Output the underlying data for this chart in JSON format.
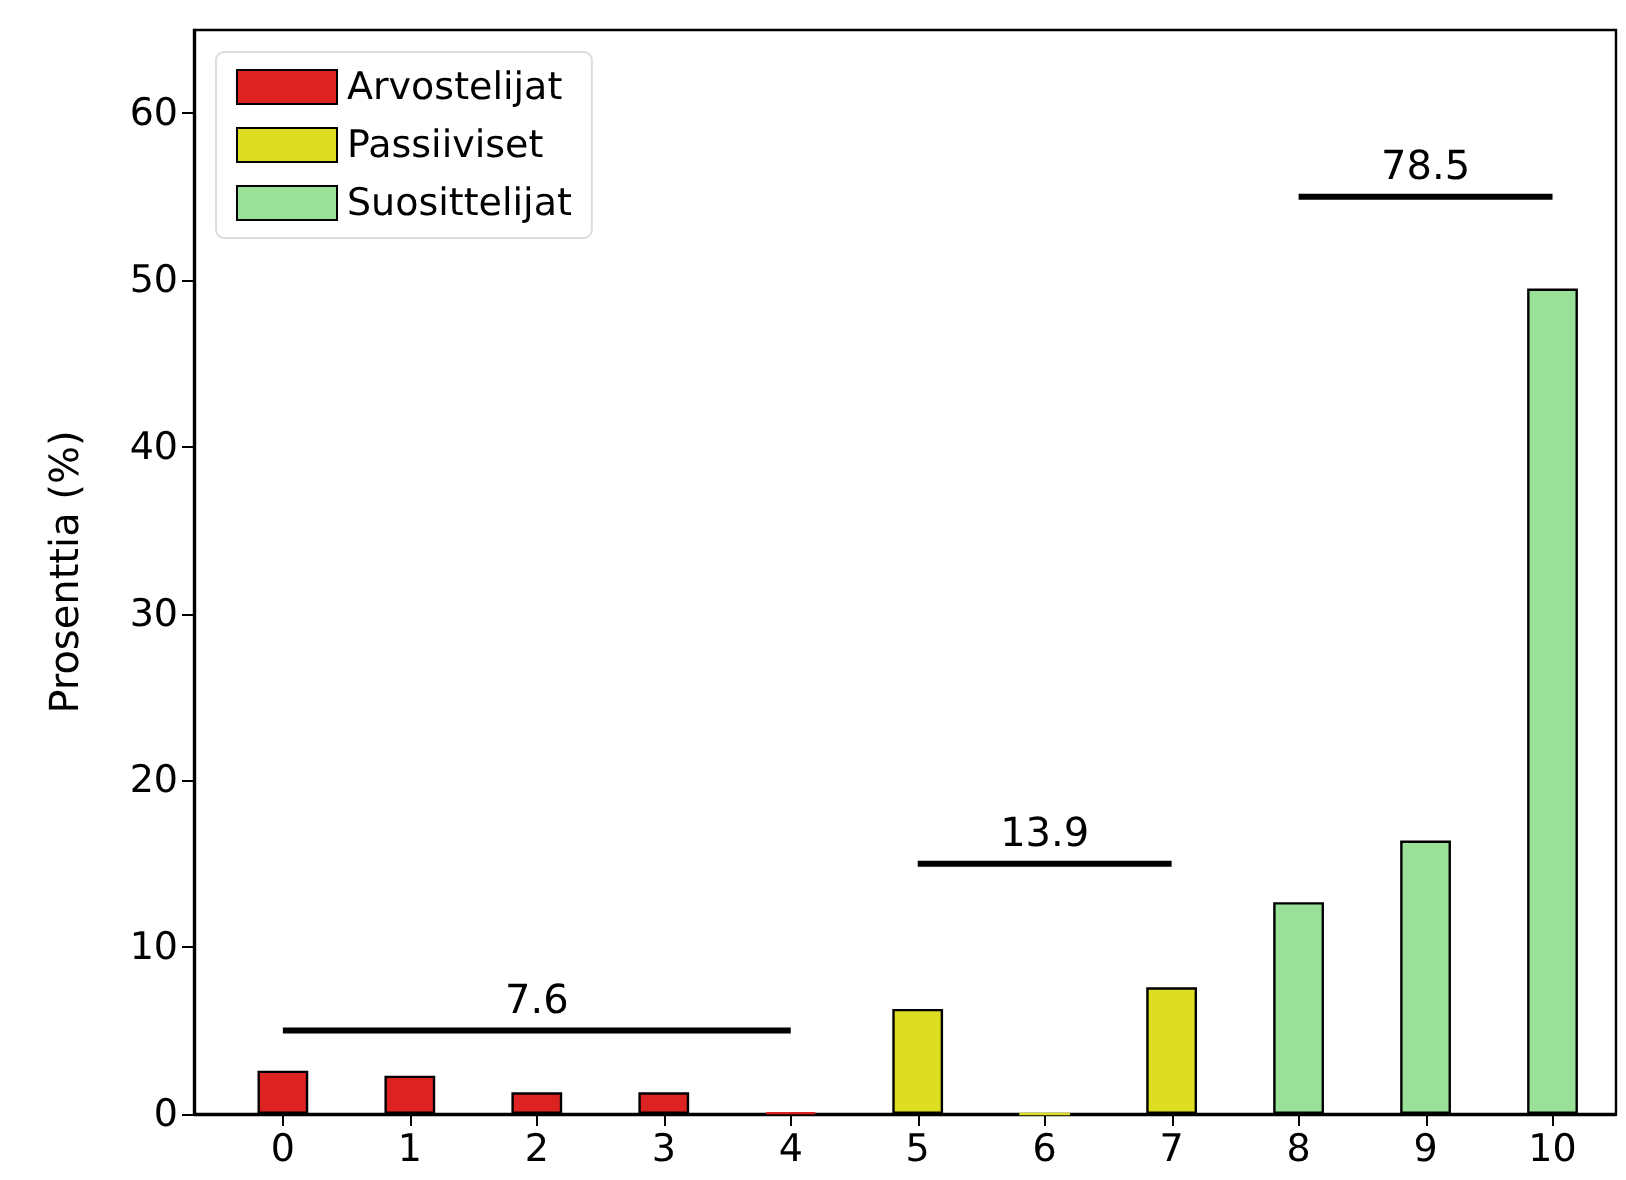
{
  "chart_data": {
    "type": "bar",
    "ylabel": "Prosenttia (%)",
    "x": [
      0,
      1,
      2,
      3,
      4,
      5,
      6,
      7,
      8,
      9,
      10
    ],
    "xlim": [
      -0.7,
      10.5
    ],
    "xticks": [
      0,
      1,
      2,
      3,
      4,
      5,
      6,
      7,
      8,
      9,
      10
    ],
    "ylim": [
      0,
      65
    ],
    "yticks": [
      0,
      10,
      20,
      30,
      40,
      50,
      60
    ],
    "series": [
      {
        "name": "Arvostelijat",
        "color": "#dd2222",
        "values": [
          2.6,
          2.3,
          1.3,
          1.3,
          0.1,
          null,
          null,
          null,
          null,
          null,
          null
        ]
      },
      {
        "name": "Passiiviset",
        "color": "#dddd22",
        "values": [
          null,
          null,
          null,
          null,
          null,
          6.3,
          0,
          7.6,
          null,
          null,
          null
        ]
      },
      {
        "name": "Suosittelijat",
        "color": "#99e099",
        "values": [
          null,
          null,
          null,
          null,
          null,
          null,
          null,
          null,
          12.7,
          16.4,
          49.5
        ]
      },
      {
        "type": "line",
        "color": "#000000",
        "x": [
          0,
          4
        ],
        "values": [
          5,
          5
        ]
      },
      {
        "type": "line",
        "color": "#000000",
        "x": [
          5,
          7
        ],
        "values": [
          15,
          15
        ]
      },
      {
        "type": "line",
        "color": "#000000",
        "x": [
          8,
          10
        ],
        "values": [
          55,
          55
        ]
      }
    ],
    "annotations": [
      {
        "text": "7.6",
        "x": 2,
        "y": 5
      },
      {
        "text": "13.9",
        "x": 6,
        "y": 15
      },
      {
        "text": "78.5",
        "x": 9,
        "y": 55
      }
    ],
    "grid": false,
    "legend": "top left",
    "marker": "none"
  }
}
